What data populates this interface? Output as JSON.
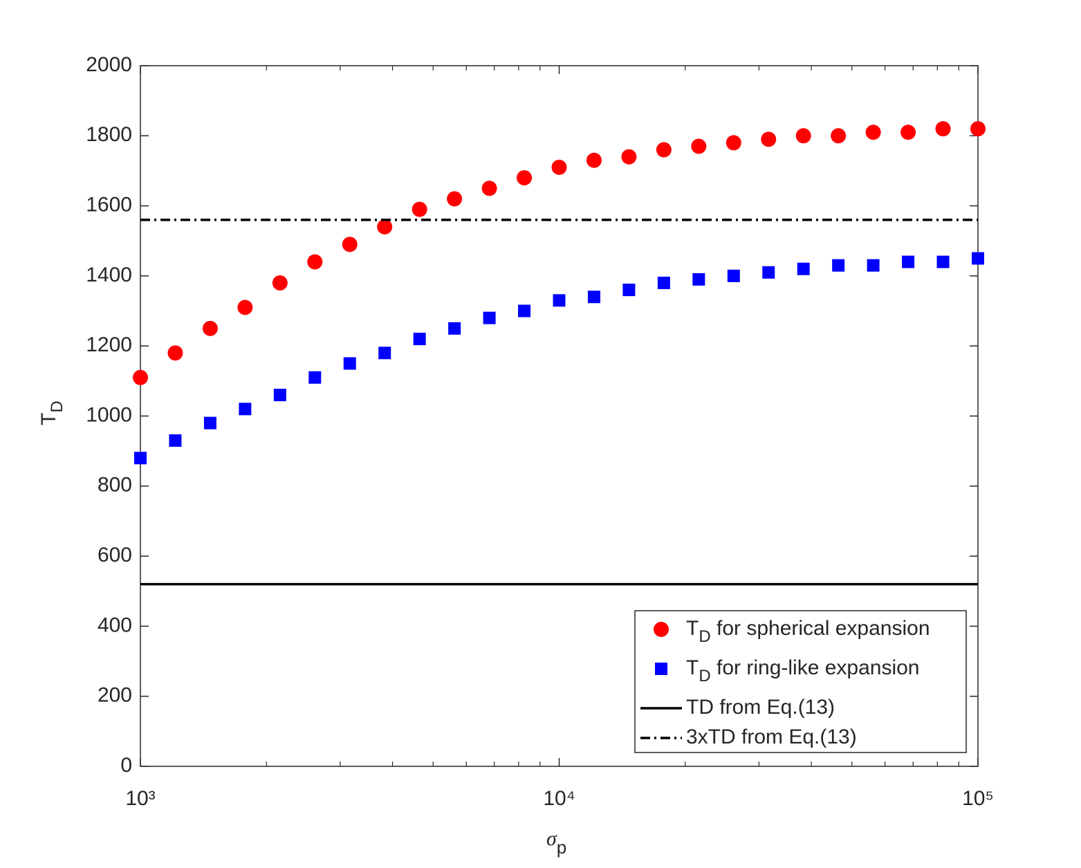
{
  "chart_data": {
    "type": "scatter",
    "xlabel": {
      "main": "σ",
      "sub": "p"
    },
    "ylabel": {
      "main": "T",
      "sub": "D"
    },
    "xscale": "log",
    "xlim": [
      1000,
      100000
    ],
    "ylim": [
      0,
      2000
    ],
    "xticks": [
      {
        "value": 1000,
        "label": "10³"
      },
      {
        "value": 10000,
        "label": "10⁴"
      },
      {
        "value": 100000,
        "label": "10⁵"
      }
    ],
    "xminorticks": [
      2000,
      3000,
      4000,
      5000,
      6000,
      7000,
      8000,
      9000,
      20000,
      30000,
      40000,
      50000,
      60000,
      70000,
      80000,
      90000
    ],
    "yticks": [
      0,
      200,
      400,
      600,
      800,
      1000,
      1200,
      1400,
      1600,
      1800,
      2000
    ],
    "legend": "lower right",
    "x": [
      1000,
      1211.5,
      1467.8,
      1778.3,
      2154.4,
      2610.2,
      3162.3,
      3831.2,
      4641.6,
      5623.4,
      6812.9,
      8254.0,
      10000,
      12115,
      14678,
      17783,
      21544,
      26102,
      31623,
      38312,
      46416,
      56234,
      68129,
      82540,
      100000
    ],
    "series": [
      {
        "name": {
          "main": "T",
          "sub": "D",
          "rest": " for spherical expansion"
        },
        "color": "#ff0000",
        "marker": "circle",
        "values": [
          1110,
          1180,
          1250,
          1310,
          1380,
          1440,
          1490,
          1540,
          1590,
          1620,
          1650,
          1680,
          1710,
          1730,
          1740,
          1760,
          1770,
          1780,
          1790,
          1800,
          1800,
          1810,
          1810,
          1820,
          1820
        ]
      },
      {
        "name": {
          "main": "T",
          "sub": "D",
          "rest": " for ring-like expansion"
        },
        "color": "#0000ff",
        "marker": "square",
        "values": [
          880,
          930,
          980,
          1020,
          1060,
          1110,
          1150,
          1180,
          1220,
          1250,
          1280,
          1300,
          1330,
          1340,
          1360,
          1380,
          1390,
          1400,
          1410,
          1420,
          1430,
          1430,
          1440,
          1440,
          1450
        ]
      },
      {
        "name": {
          "main": "TD from Eq.(13)"
        },
        "color": "#000000",
        "marker": "hline",
        "dash": "solid",
        "values": [
          520
        ]
      },
      {
        "name": {
          "main": "3xTD from Eq.(13)"
        },
        "color": "#000000",
        "marker": "hline",
        "dash": "dashdot",
        "values": [
          1560
        ]
      }
    ]
  }
}
